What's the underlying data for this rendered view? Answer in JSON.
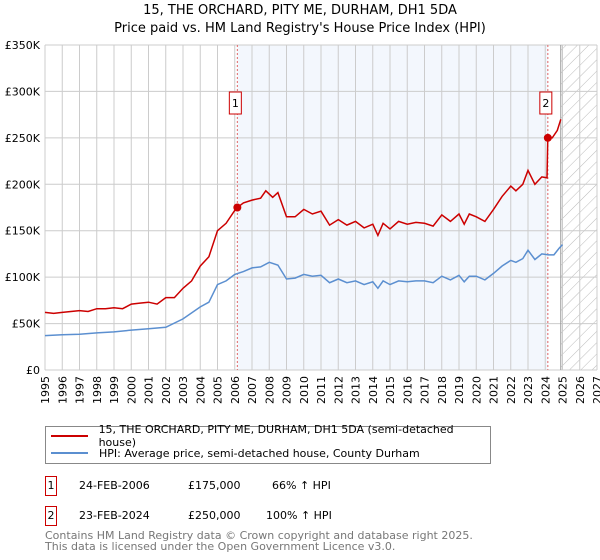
{
  "chart_data": {
    "type": "line",
    "title": "15, THE ORCHARD, PITY ME, DURHAM, DH1 5DA",
    "subtitle": "Price paid vs. HM Land Registry's House Price Index (HPI)",
    "xlabel": "",
    "ylabel": "",
    "xlim": [
      1995,
      2027
    ],
    "ylim": [
      0,
      350000
    ],
    "x_ticks": [
      "1995",
      "1996",
      "1997",
      "1998",
      "1999",
      "2000",
      "2001",
      "2002",
      "2003",
      "2004",
      "2005",
      "2006",
      "2007",
      "2008",
      "2009",
      "2010",
      "2011",
      "2012",
      "2013",
      "2014",
      "2015",
      "2016",
      "2017",
      "2018",
      "2019",
      "2020",
      "2021",
      "2022",
      "2023",
      "2024",
      "2025",
      "2026",
      "2027"
    ],
    "y_ticks": [
      {
        "v": 0,
        "label": "£0"
      },
      {
        "v": 50000,
        "label": "£50K"
      },
      {
        "v": 100000,
        "label": "£100K"
      },
      {
        "v": 150000,
        "label": "£150K"
      },
      {
        "v": 200000,
        "label": "£200K"
      },
      {
        "v": 250000,
        "label": "£250K"
      },
      {
        "v": 300000,
        "label": "£300K"
      },
      {
        "v": 350000,
        "label": "£350K"
      }
    ],
    "grid": true,
    "shaded_range": [
      2006.15,
      2024.15
    ],
    "forecast_hatch_from": 2024.9,
    "series": [
      {
        "name": "15, THE ORCHARD, PITY ME, DURHAM, DH1 5DA (semi-detached house)",
        "color": "#cc0000",
        "x": [
          1995,
          1995.5,
          1996,
          1996.5,
          1997,
          1997.5,
          1998,
          1998.5,
          1999,
          1999.5,
          2000,
          2000.5,
          2001,
          2001.5,
          2002,
          2002.5,
          2003,
          2003.5,
          2004,
          2004.5,
          2005,
          2005.5,
          2006,
          2006.15,
          2006.5,
          2007,
          2007.5,
          2007.8,
          2008.2,
          2008.5,
          2009,
          2009.5,
          2010,
          2010.5,
          2011,
          2011.5,
          2012,
          2012.5,
          2013,
          2013.5,
          2014,
          2014.3,
          2014.6,
          2015,
          2015.5,
          2016,
          2016.5,
          2017,
          2017.5,
          2018,
          2018.5,
          2019,
          2019.3,
          2019.6,
          2020,
          2020.5,
          2021,
          2021.5,
          2022,
          2022.3,
          2022.7,
          2023,
          2023.4,
          2023.8,
          2024.1,
          2024.15,
          2024.4,
          2024.7,
          2024.9
        ],
        "y": [
          62000,
          61000,
          62000,
          63000,
          64000,
          63000,
          66000,
          66000,
          67000,
          66000,
          71000,
          72000,
          73000,
          71000,
          78000,
          78000,
          88000,
          96000,
          112000,
          122000,
          150000,
          158000,
          172000,
          175000,
          180000,
          183000,
          185000,
          193000,
          186000,
          191000,
          165000,
          165000,
          173000,
          168000,
          171000,
          156000,
          162000,
          156000,
          160000,
          153000,
          157000,
          145000,
          158000,
          152000,
          160000,
          157000,
          159000,
          158000,
          155000,
          167000,
          160000,
          168000,
          157000,
          168000,
          165000,
          160000,
          173000,
          187000,
          198000,
          193000,
          200000,
          215000,
          200000,
          208000,
          207000,
          250000,
          250000,
          258000,
          270000
        ]
      },
      {
        "name": "HPI: Average price, semi-detached house, County Durham",
        "color": "#5b8fd0",
        "x": [
          1995,
          1996,
          1997,
          1998,
          1999,
          2000,
          2001,
          2002,
          2003,
          2004,
          2004.5,
          2005,
          2005.5,
          2006,
          2006.5,
          2007,
          2007.5,
          2008,
          2008.5,
          2009,
          2009.5,
          2010,
          2010.5,
          2011,
          2011.5,
          2012,
          2012.5,
          2013,
          2013.5,
          2014,
          2014.3,
          2014.6,
          2015,
          2015.5,
          2016,
          2016.5,
          2017,
          2017.5,
          2018,
          2018.5,
          2019,
          2019.3,
          2019.6,
          2020,
          2020.5,
          2021,
          2021.5,
          2022,
          2022.3,
          2022.7,
          2023,
          2023.4,
          2023.8,
          2024.2,
          2024.5,
          2024.8,
          2025
        ],
        "y": [
          37000,
          38000,
          38500,
          40000,
          41000,
          43000,
          44500,
          46000,
          55000,
          68000,
          73000,
          92000,
          96000,
          103000,
          106000,
          110000,
          111000,
          116000,
          113000,
          98000,
          99000,
          103000,
          101000,
          102000,
          94000,
          98000,
          94000,
          96000,
          92000,
          95000,
          88000,
          96000,
          92000,
          96000,
          95000,
          96000,
          96000,
          94000,
          101000,
          97000,
          102000,
          95000,
          101000,
          101000,
          97000,
          104000,
          112000,
          118000,
          116000,
          120000,
          129000,
          119000,
          125000,
          124000,
          124000,
          131000,
          135000
        ]
      }
    ],
    "sales": [
      {
        "label": "1",
        "x": 2006.15,
        "y": 175000,
        "date": "24-FEB-2006",
        "price": "£175,000",
        "hpi": "66% ↑ HPI"
      },
      {
        "label": "2",
        "x": 2024.15,
        "y": 250000,
        "date": "23-FEB-2024",
        "price": "£250,000",
        "hpi": "100% ↑ HPI"
      }
    ]
  },
  "footer": {
    "line1": "Contains HM Land Registry data © Crown copyright and database right 2025.",
    "line2": "This data is licensed under the Open Government Licence v3.0."
  }
}
